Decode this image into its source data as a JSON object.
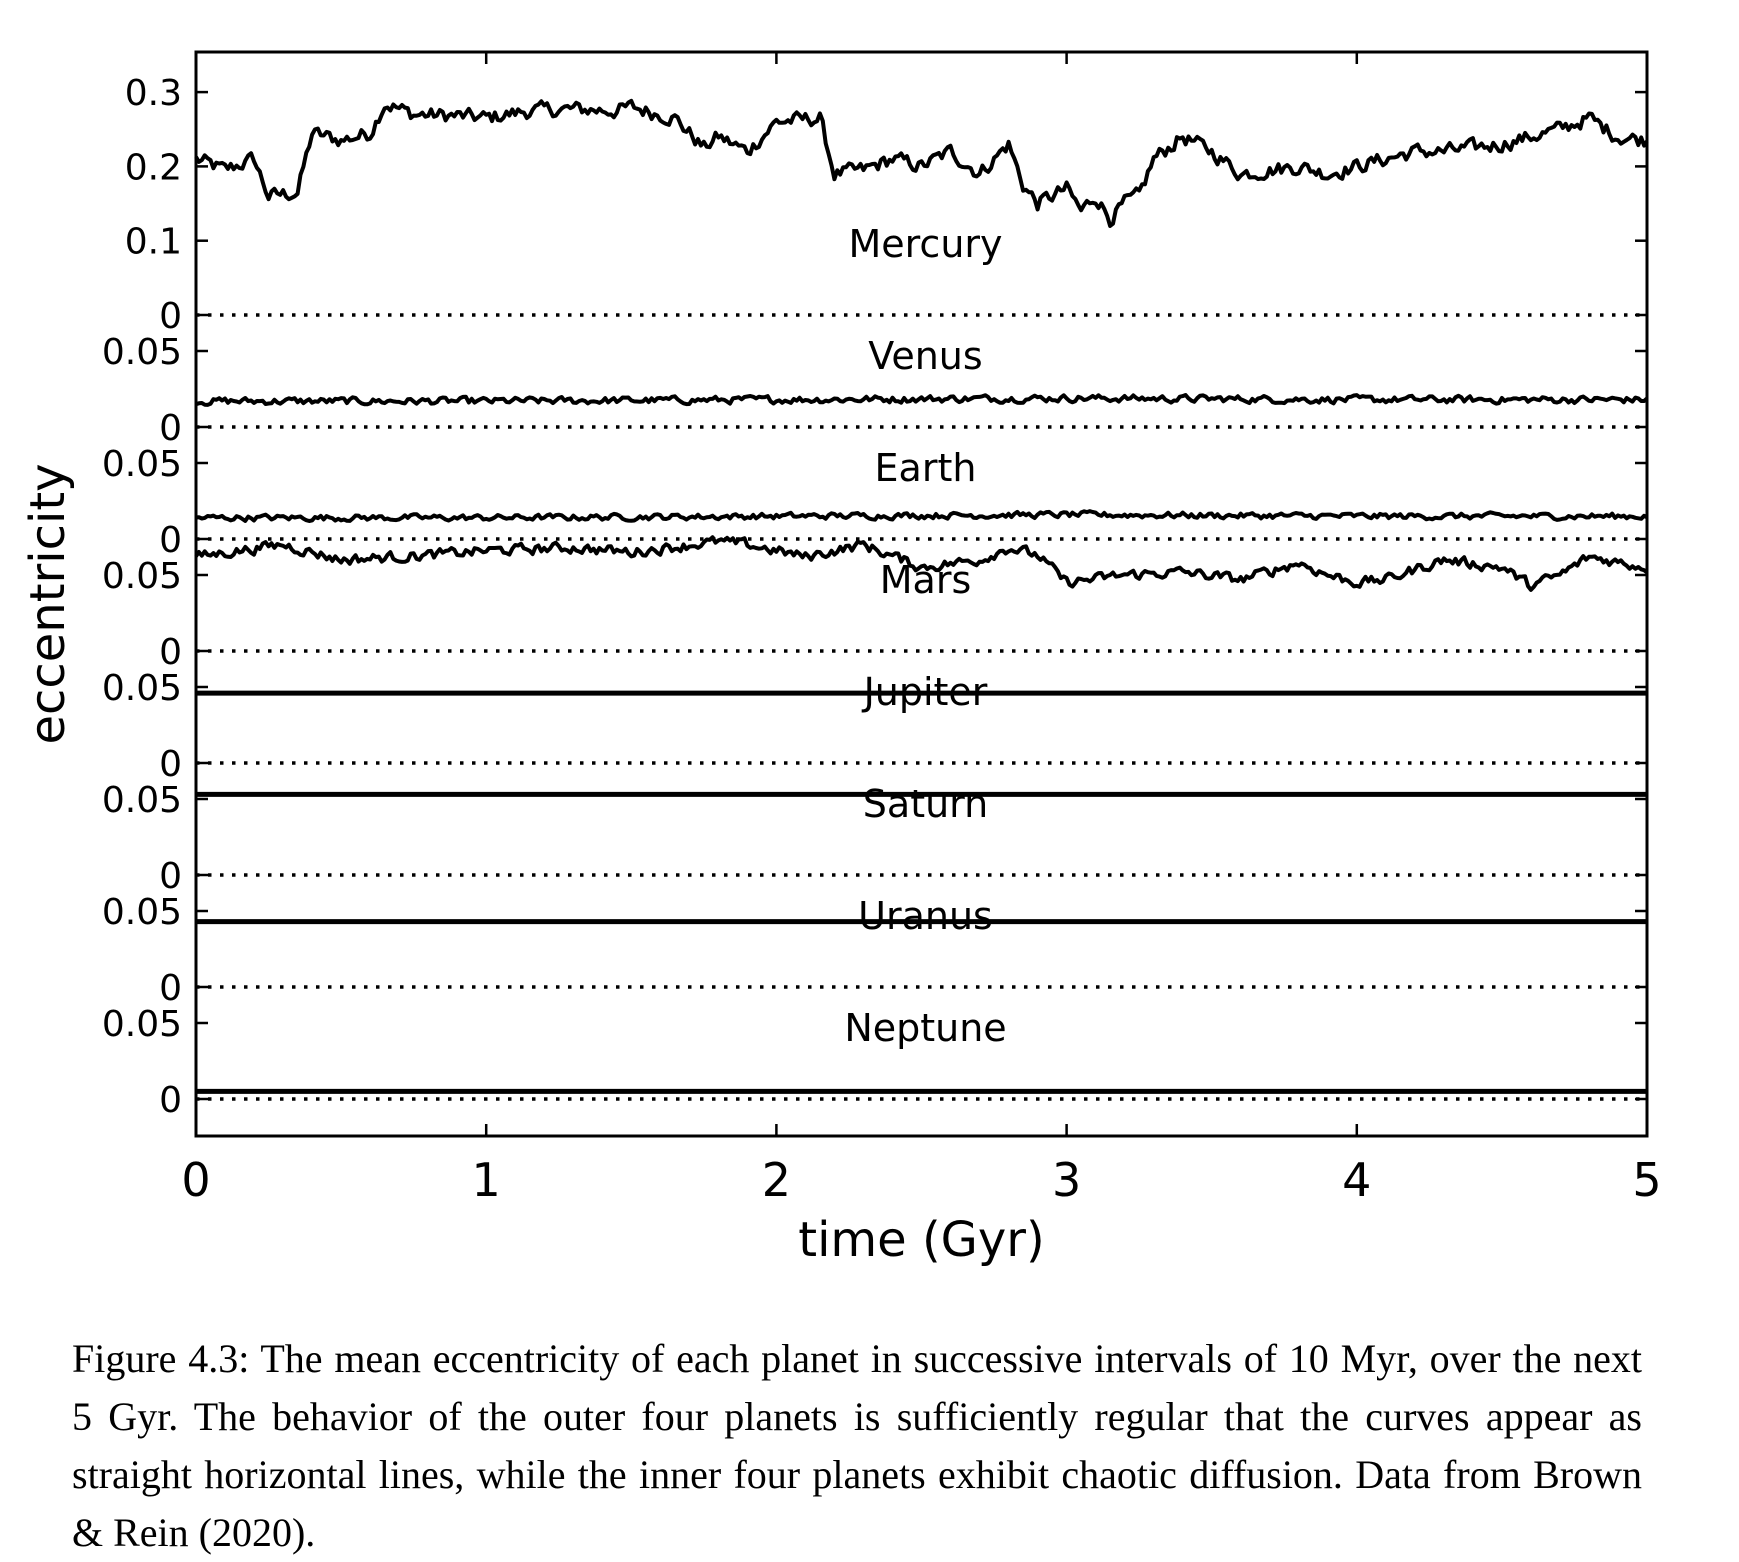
{
  "caption": "Figure 4.3: The mean eccentricity of each planet in successive intervals of 10 Myr, over the next 5 Gyr. The behavior of the outer four planets is sufficiently regular that the curves appear as straight horizontal lines, while the inner four planets exhibit chaotic diffusion. Data from Brown & Rein (2020).",
  "chart_data": {
    "type": "line",
    "xlabel": "time (Gyr)",
    "ylabel": "eccentricity",
    "xlim": [
      0,
      5
    ],
    "x_ticks": [
      "0",
      "1",
      "2",
      "3",
      "4",
      "5"
    ],
    "grid": false,
    "line_color": "#000000",
    "panels": [
      {
        "name": "Mercury",
        "ylim": [
          -0.05,
          0.35
        ],
        "y_ticks": [
          0,
          0.1,
          0.2,
          0.3
        ],
        "y_tick_labels": [
          "0",
          "0.1",
          "0.2",
          "0.3"
        ],
        "x": [
          0,
          0.1,
          0.2,
          0.25,
          0.35,
          0.4,
          0.5,
          0.6,
          0.65,
          0.75,
          0.9,
          1.0,
          1.15,
          1.3,
          1.45,
          1.5,
          1.65,
          1.75,
          1.8,
          1.9,
          2.0,
          2.15,
          2.2,
          2.3,
          2.4,
          2.5,
          2.6,
          2.7,
          2.8,
          2.85,
          2.9,
          3.0,
          3.05,
          3.1,
          3.15,
          3.2,
          3.25,
          3.3,
          3.4,
          3.5,
          3.6,
          3.7,
          3.8,
          3.9,
          4.0,
          4.1,
          4.2,
          4.3,
          4.4,
          4.5,
          4.6,
          4.7,
          4.8,
          4.9,
          5.0
        ],
        "values": [
          0.21,
          0.195,
          0.21,
          0.16,
          0.165,
          0.245,
          0.235,
          0.245,
          0.285,
          0.27,
          0.268,
          0.265,
          0.275,
          0.277,
          0.275,
          0.28,
          0.265,
          0.225,
          0.24,
          0.22,
          0.26,
          0.265,
          0.19,
          0.195,
          0.21,
          0.2,
          0.22,
          0.19,
          0.23,
          0.175,
          0.15,
          0.17,
          0.14,
          0.16,
          0.13,
          0.15,
          0.16,
          0.21,
          0.24,
          0.22,
          0.19,
          0.195,
          0.2,
          0.19,
          0.2,
          0.21,
          0.22,
          0.22,
          0.225,
          0.23,
          0.24,
          0.25,
          0.265,
          0.24,
          0.235
        ],
        "noise": 0.015
      },
      {
        "name": "Venus",
        "ylim": [
          -0.02,
          0.13
        ],
        "y_ticks": [
          0,
          0.05
        ],
        "y_tick_labels": [
          "0",
          "0.05"
        ],
        "x": [
          0,
          1,
          2,
          3,
          4,
          5
        ],
        "values": [
          0.017,
          0.017,
          0.018,
          0.019,
          0.018,
          0.018
        ],
        "noise": 0.0035
      },
      {
        "name": "Earth",
        "ylim": [
          -0.02,
          0.13
        ],
        "y_ticks": [
          0,
          0.05
        ],
        "y_tick_labels": [
          "0",
          "0.05"
        ],
        "x": [
          0,
          1,
          2,
          3,
          4,
          5
        ],
        "values": [
          0.014,
          0.014,
          0.015,
          0.016,
          0.015,
          0.015
        ],
        "noise": 0.003
      },
      {
        "name": "Mars",
        "ylim": [
          -0.02,
          0.13
        ],
        "y_ticks": [
          0,
          0.05
        ],
        "y_tick_labels": [
          "0",
          "0.05"
        ],
        "x": [
          0,
          0.3,
          0.5,
          0.8,
          1.0,
          1.3,
          1.5,
          1.8,
          1.9,
          2.1,
          2.3,
          2.5,
          2.7,
          2.8,
          2.9,
          3.0,
          3.2,
          3.4,
          3.6,
          3.8,
          3.9,
          4.0,
          4.1,
          4.3,
          4.5,
          4.6,
          4.7,
          4.8,
          5.0
        ],
        "values": [
          0.062,
          0.07,
          0.06,
          0.063,
          0.066,
          0.068,
          0.065,
          0.072,
          0.07,
          0.062,
          0.07,
          0.055,
          0.06,
          0.068,
          0.063,
          0.045,
          0.05,
          0.052,
          0.047,
          0.058,
          0.05,
          0.045,
          0.047,
          0.06,
          0.055,
          0.043,
          0.05,
          0.062,
          0.055
        ],
        "noise": 0.005
      },
      {
        "name": "Jupiter",
        "ylim": [
          -0.02,
          0.13
        ],
        "y_ticks": [
          0,
          0.05
        ],
        "y_tick_labels": [
          "0",
          "0.05"
        ],
        "x": [
          0,
          5
        ],
        "values": [
          0.046,
          0.046
        ],
        "noise": 0
      },
      {
        "name": "Saturn",
        "ylim": [
          -0.02,
          0.13
        ],
        "y_ticks": [
          0,
          0.05
        ],
        "y_tick_labels": [
          "0",
          "0.05"
        ],
        "x": [
          0,
          5
        ],
        "values": [
          0.053,
          0.053
        ],
        "noise": 0
      },
      {
        "name": "Uranus",
        "ylim": [
          -0.02,
          0.13
        ],
        "y_ticks": [
          0,
          0.05
        ],
        "y_tick_labels": [
          "0",
          "0.05"
        ],
        "x": [
          0,
          5
        ],
        "values": [
          0.043,
          0.043
        ],
        "noise": 0
      },
      {
        "name": "Neptune",
        "ylim": [
          -0.02,
          0.13
        ],
        "y_ticks": [
          0,
          0.05
        ],
        "y_tick_labels": [
          "0",
          "0.05"
        ],
        "x": [
          0,
          5
        ],
        "values": [
          0.005,
          0.005
        ],
        "noise": 0
      }
    ]
  }
}
